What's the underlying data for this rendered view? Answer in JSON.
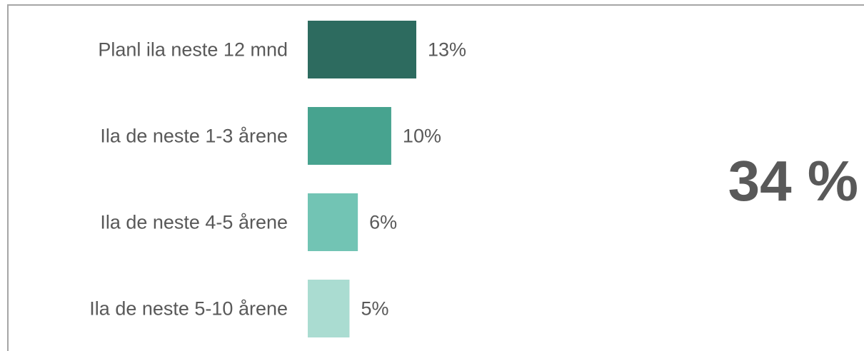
{
  "chart_data": {
    "type": "bar",
    "orientation": "horizontal",
    "categories": [
      "Planl ila neste 12 mnd",
      "Ila de neste 1-3 årene",
      "Ila de neste 4-5 årene",
      "Ila de neste 5-10 årene"
    ],
    "values": [
      13,
      10,
      6,
      5
    ],
    "value_labels": [
      "13%",
      "10%",
      "6%",
      "5%"
    ],
    "bar_colors": [
      "#2d6b5f",
      "#47a38f",
      "#72c4b4",
      "#aadcd1"
    ],
    "xlim": [
      0,
      13
    ],
    "grid": false,
    "legend": "none"
  },
  "total": {
    "value": "34 %",
    "color": "#595959"
  }
}
